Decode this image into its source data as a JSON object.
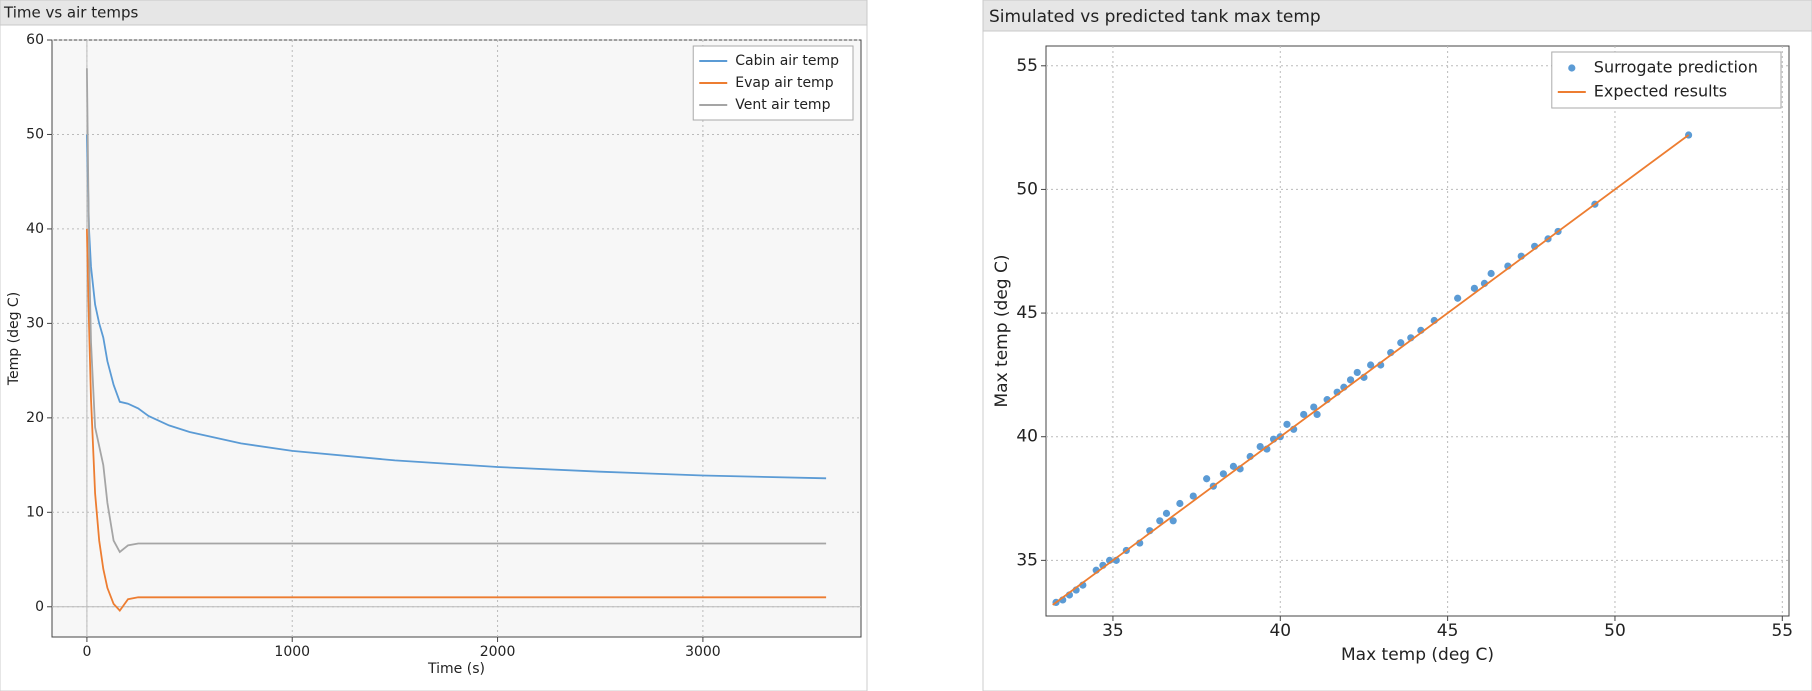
{
  "chart_data": [
    {
      "type": "line",
      "title": "Time vs air temps",
      "x_label": "Time (s)",
      "y_label": "Temp (deg C)",
      "xlim": [
        -170,
        3770
      ],
      "ylim": [
        -3.2,
        60
      ],
      "xticks": [
        0,
        1000,
        2000,
        3000
      ],
      "yticks": [
        0,
        10,
        20,
        30,
        40,
        50,
        60
      ],
      "grid": true,
      "legend": "upper right",
      "x": [
        0,
        10,
        20,
        40,
        60,
        80,
        100,
        130,
        160,
        200,
        250,
        300,
        400,
        500,
        750,
        1000,
        1500,
        2000,
        2500,
        3000,
        3600
      ],
      "series": [
        {
          "name": "Cabin air temp",
          "color": "#5b9bd5",
          "values": [
            50,
            40,
            36,
            32,
            30,
            28.5,
            26,
            23.5,
            21.7,
            21.5,
            21,
            20.2,
            19.2,
            18.5,
            17.3,
            16.5,
            15.5,
            14.8,
            14.3,
            13.9,
            13.6
          ]
        },
        {
          "name": "Evap air temp",
          "color": "#ed7d31",
          "values": [
            40,
            30,
            22,
            12,
            7,
            4,
            2,
            0.3,
            -0.4,
            0.8,
            1.0,
            1.0,
            1.0,
            1.0,
            1.0,
            1.0,
            1.0,
            1.0,
            1.0,
            1.0,
            1.0
          ]
        },
        {
          "name": "Vent air temp",
          "color": "#a5a5a5",
          "values": [
            57,
            38,
            28,
            19,
            17,
            15,
            11,
            7,
            5.8,
            6.5,
            6.7,
            6.7,
            6.7,
            6.7,
            6.7,
            6.7,
            6.7,
            6.7,
            6.7,
            6.7,
            6.7
          ]
        }
      ]
    },
    {
      "type": "scatter",
      "title": "Simulated vs predicted tank max temp",
      "x_label": "Max temp (deg C)",
      "y_label": "Max temp (deg C)",
      "xlim": [
        33,
        55.2
      ],
      "ylim": [
        32.75,
        55.8
      ],
      "xticks": [
        35,
        40,
        45,
        50,
        55
      ],
      "yticks": [
        35,
        40,
        45,
        50,
        55
      ],
      "grid": true,
      "legend": "upper right",
      "series": [
        {
          "name": "Surrogate prediction",
          "type": "scatter",
          "color": "#5b9bd5",
          "x": [
            33.3,
            33.5,
            33.7,
            33.9,
            34.1,
            34.5,
            34.7,
            34.9,
            35.1,
            35.4,
            35.8,
            36.1,
            36.4,
            36.6,
            36.8,
            37.0,
            37.4,
            37.8,
            38.0,
            38.3,
            38.6,
            38.8,
            39.1,
            39.4,
            39.6,
            39.8,
            40.0,
            40.2,
            40.4,
            40.7,
            41.0,
            41.1,
            41.4,
            41.7,
            41.9,
            42.1,
            42.3,
            42.5,
            42.7,
            43.0,
            43.3,
            43.6,
            43.9,
            44.2,
            44.6,
            45.3,
            45.8,
            46.1,
            46.3,
            46.8,
            47.2,
            47.6,
            48.0,
            48.3,
            49.4,
            52.2
          ],
          "values": [
            33.3,
            33.4,
            33.6,
            33.8,
            34.0,
            34.6,
            34.8,
            35.0,
            35.0,
            35.4,
            35.7,
            36.2,
            36.6,
            36.9,
            36.6,
            37.3,
            37.6,
            38.3,
            38.0,
            38.5,
            38.8,
            38.7,
            39.2,
            39.6,
            39.5,
            39.9,
            40.0,
            40.5,
            40.3,
            40.9,
            41.2,
            40.9,
            41.5,
            41.8,
            42.0,
            42.3,
            42.6,
            42.4,
            42.9,
            42.9,
            43.4,
            43.8,
            44.0,
            44.3,
            44.7,
            45.6,
            46.0,
            46.2,
            46.6,
            46.9,
            47.3,
            47.7,
            48.0,
            48.3,
            49.4,
            52.2
          ]
        },
        {
          "name": "Expected results",
          "type": "line",
          "color": "#ed7d31",
          "x": [
            33.2,
            52.2
          ],
          "values": [
            33.2,
            52.2
          ]
        }
      ]
    }
  ]
}
